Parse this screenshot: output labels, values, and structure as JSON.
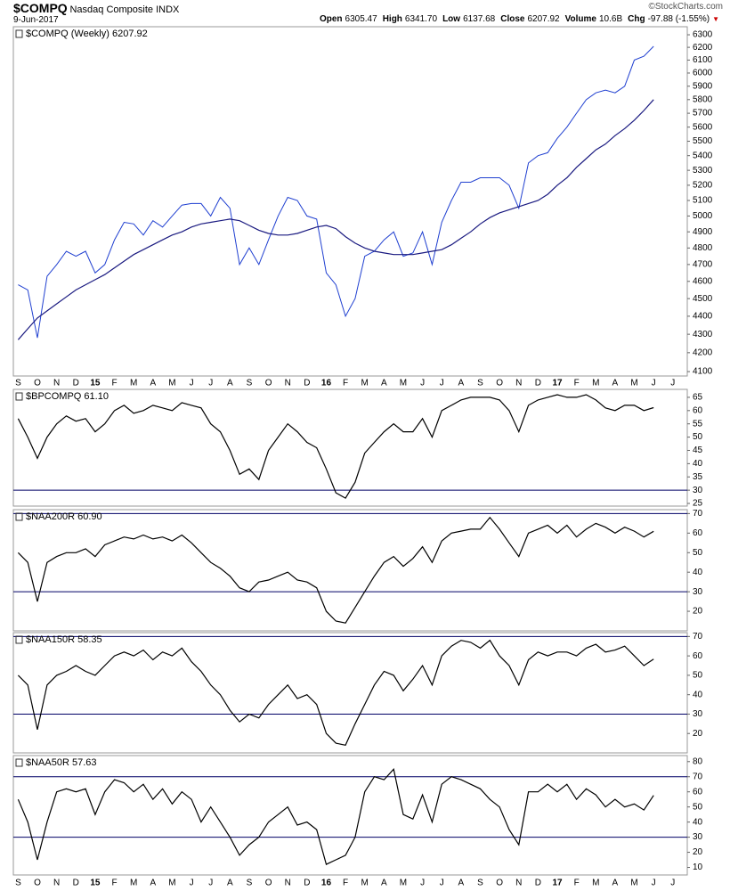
{
  "header": {
    "symbol": "$COMPQ",
    "name": "Nasdaq Composite INDX",
    "date": "9-Jun-2017",
    "source": "©StockCharts.com",
    "quote": [
      {
        "label": "Open",
        "value": "6305.47"
      },
      {
        "label": "High",
        "value": "6341.70"
      },
      {
        "label": "Low",
        "value": "6137.68"
      },
      {
        "label": "Close",
        "value": "6207.92"
      },
      {
        "label": "Volume",
        "value": "10.6B"
      },
      {
        "label": "Chg",
        "value": "-97.88 (-1.55%)"
      }
    ]
  },
  "chart_data": [
    {
      "type": "line",
      "label": "$COMPQ (Weekly) 6207.92",
      "log": true,
      "categories": [
        "S",
        null,
        "O",
        null,
        "N",
        null,
        "D",
        null,
        "15",
        null,
        "F",
        null,
        "M",
        null,
        "A",
        null,
        "M",
        null,
        "J",
        null,
        "J",
        null,
        "A",
        null,
        "S",
        null,
        "O",
        null,
        "N",
        null,
        "D",
        null,
        "16",
        null,
        "F",
        null,
        "M",
        null,
        "A",
        null,
        "M",
        null,
        "J",
        null,
        "J",
        null,
        "A",
        null,
        "S",
        null,
        "O",
        null,
        "N",
        null,
        "D",
        null,
        "17",
        null,
        "F",
        null,
        "M",
        null,
        "A",
        null,
        "M",
        null,
        "J",
        null,
        "J",
        null
      ],
      "ylim": [
        4077,
        6365
      ],
      "yticks": [
        4100,
        4200,
        4300,
        4400,
        4500,
        4600,
        4700,
        4800,
        4900,
        5000,
        5100,
        5200,
        5300,
        5400,
        5500,
        5600,
        5700,
        5800,
        5900,
        6000,
        6100,
        6200,
        6300
      ],
      "series": [
        {
          "color": "#1f3fd0",
          "values": [
            4580,
            4550,
            4280,
            4630,
            4700,
            4780,
            4750,
            4780,
            4650,
            4700,
            4850,
            4960,
            4950,
            4880,
            4970,
            4930,
            5000,
            5070,
            5080,
            5080,
            5000,
            5120,
            5050,
            4700,
            4800,
            4700,
            4850,
            5000,
            5120,
            5100,
            5000,
            4980,
            4650,
            4580,
            4400,
            4500,
            4750,
            4780,
            4850,
            4900,
            4750,
            4770,
            4900,
            4700,
            4960,
            5100,
            5220,
            5220,
            5250,
            5250,
            5250,
            5200,
            5050,
            5350,
            5400,
            5420,
            5520,
            5600,
            5700,
            5800,
            5850,
            5870,
            5850,
            5900,
            6100,
            6130,
            6207.92,
            null,
            null,
            null
          ]
        },
        {
          "color": "#1a1a80",
          "values": [
            4270,
            4330,
            4390,
            4430,
            4470,
            4510,
            4550,
            4580,
            4610,
            4640,
            4680,
            4720,
            4760,
            4790,
            4820,
            4850,
            4880,
            4900,
            4930,
            4950,
            4960,
            4970,
            4980,
            4970,
            4940,
            4910,
            4890,
            4880,
            4880,
            4890,
            4910,
            4930,
            4940,
            4920,
            4870,
            4830,
            4800,
            4780,
            4770,
            4760,
            4760,
            4760,
            4770,
            4780,
            4790,
            4820,
            4860,
            4900,
            4950,
            4990,
            5020,
            5040,
            5060,
            5080,
            5100,
            5140,
            5200,
            5250,
            5320,
            5380,
            5440,
            5480,
            5540,
            5590,
            5650,
            5720,
            5800,
            null,
            null,
            null
          ]
        }
      ]
    },
    {
      "type": "line",
      "label": "$BPCOMPQ 61.10",
      "ylim": [
        24,
        68
      ],
      "yticks": [
        25,
        30,
        35,
        40,
        45,
        50,
        55,
        60,
        65
      ],
      "hlines": [
        30
      ],
      "series": [
        {
          "color": "#000000",
          "values": [
            57,
            50,
            42,
            50,
            55,
            58,
            56,
            57,
            52,
            55,
            60,
            62,
            59,
            60,
            62,
            61,
            60,
            63,
            62,
            61,
            55,
            52,
            45,
            36,
            38,
            34,
            45,
            50,
            55,
            52,
            48,
            46,
            38,
            29,
            27,
            33,
            44,
            48,
            52,
            55,
            52,
            52,
            57,
            50,
            60,
            62,
            64,
            65,
            65,
            65,
            64,
            60,
            52,
            62,
            64,
            65,
            66,
            65,
            65,
            66,
            64,
            61,
            60,
            62,
            62,
            60,
            61.1,
            null,
            null,
            null
          ]
        }
      ]
    },
    {
      "type": "line",
      "label": "$NAA200R 60.90",
      "ylim": [
        10,
        72
      ],
      "yticks": [
        20,
        30,
        40,
        50,
        60,
        70
      ],
      "hlines": [
        70,
        30
      ],
      "series": [
        {
          "color": "#000000",
          "values": [
            50,
            45,
            25,
            45,
            48,
            50,
            50,
            52,
            48,
            54,
            56,
            58,
            57,
            59,
            57,
            58,
            56,
            59,
            55,
            50,
            45,
            42,
            38,
            32,
            30,
            35,
            36,
            38,
            40,
            36,
            35,
            32,
            20,
            15,
            14,
            22,
            30,
            38,
            45,
            48,
            43,
            47,
            53,
            45,
            56,
            60,
            61,
            62,
            62,
            68,
            62,
            55,
            48,
            60,
            62,
            64,
            60,
            64,
            58,
            62,
            65,
            63,
            60,
            63,
            61,
            58,
            60.9,
            null,
            null,
            null
          ]
        }
      ]
    },
    {
      "type": "line",
      "label": "$NAA150R 58.35",
      "ylim": [
        10,
        72
      ],
      "yticks": [
        20,
        30,
        40,
        50,
        60,
        70
      ],
      "hlines": [
        70,
        30
      ],
      "series": [
        {
          "color": "#000000",
          "values": [
            50,
            45,
            22,
            45,
            50,
            52,
            55,
            52,
            50,
            55,
            60,
            62,
            60,
            63,
            58,
            62,
            60,
            64,
            57,
            52,
            45,
            40,
            32,
            26,
            30,
            28,
            35,
            40,
            45,
            38,
            40,
            35,
            20,
            15,
            14,
            25,
            35,
            45,
            52,
            50,
            42,
            48,
            55,
            45,
            60,
            65,
            68,
            67,
            64,
            68,
            60,
            55,
            45,
            58,
            62,
            60,
            62,
            62,
            60,
            64,
            66,
            62,
            63,
            65,
            60,
            55,
            58.35,
            null,
            null,
            null
          ]
        }
      ]
    },
    {
      "type": "line",
      "label": "$NAA50R 57.63",
      "ylim": [
        5,
        84
      ],
      "yticks": [
        10,
        20,
        30,
        40,
        50,
        60,
        70,
        80
      ],
      "hlines": [
        70,
        30
      ],
      "series": [
        {
          "color": "#000000",
          "values": [
            55,
            40,
            15,
            40,
            60,
            62,
            60,
            62,
            45,
            60,
            68,
            66,
            60,
            65,
            55,
            62,
            52,
            60,
            55,
            40,
            50,
            40,
            30,
            18,
            25,
            30,
            40,
            45,
            50,
            38,
            40,
            35,
            12,
            15,
            18,
            30,
            60,
            70,
            68,
            75,
            45,
            42,
            58,
            40,
            65,
            70,
            68,
            65,
            62,
            55,
            50,
            35,
            25,
            60,
            60,
            65,
            60,
            65,
            55,
            62,
            58,
            50,
            55,
            50,
            52,
            48,
            57.63,
            null,
            null,
            null
          ]
        }
      ]
    }
  ]
}
